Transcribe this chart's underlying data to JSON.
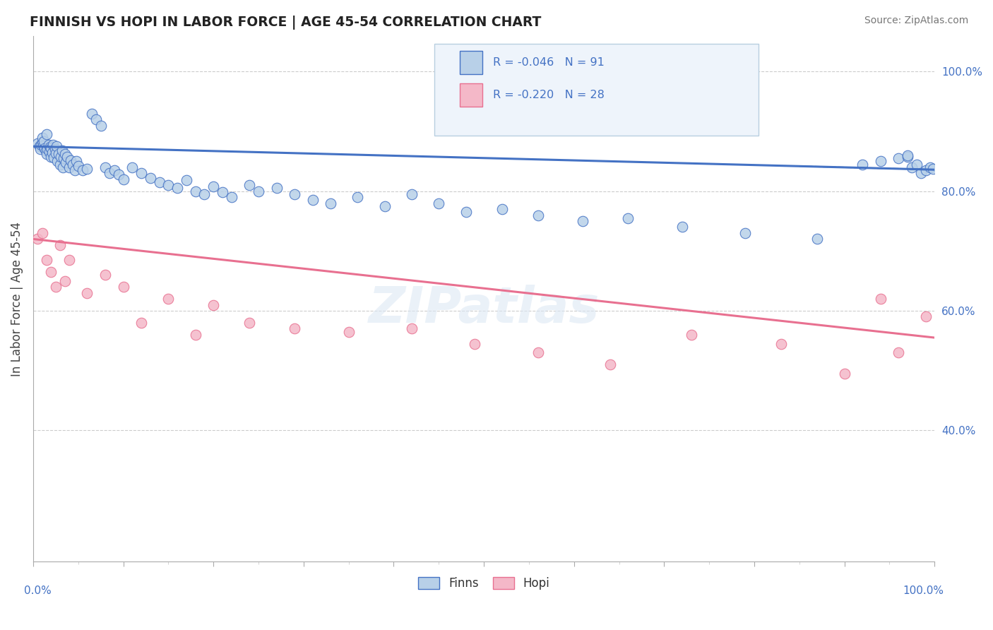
{
  "title": "FINNISH VS HOPI IN LABOR FORCE | AGE 45-54 CORRELATION CHART",
  "source": "Source: ZipAtlas.com",
  "ylabel": "In Labor Force | Age 45-54",
  "xmin": 0.0,
  "xmax": 1.0,
  "ymin": 0.18,
  "ymax": 1.06,
  "right_yticks": [
    0.4,
    0.6,
    0.8,
    1.0
  ],
  "right_yticklabels": [
    "40.0%",
    "60.0%",
    "80.0%",
    "100.0%"
  ],
  "finns_R": -0.046,
  "finns_N": 91,
  "hopi_R": -0.22,
  "hopi_N": 28,
  "finns_color": "#b8d0e8",
  "hopi_color": "#f4b8c8",
  "finns_line_color": "#4472c4",
  "hopi_line_color": "#e87090",
  "finns_line_start_y": 0.875,
  "finns_line_end_y": 0.836,
  "hopi_line_start_y": 0.72,
  "hopi_line_end_y": 0.555,
  "watermark_text": "ZIPatlas",
  "legend_R1": "R = -0.046",
  "legend_N1": "N = 91",
  "legend_R2": "R = -0.220",
  "legend_N2": "N = 28",
  "finns_x": [
    0.005,
    0.007,
    0.008,
    0.009,
    0.01,
    0.01,
    0.011,
    0.012,
    0.013,
    0.014,
    0.015,
    0.015,
    0.016,
    0.017,
    0.018,
    0.019,
    0.02,
    0.02,
    0.021,
    0.022,
    0.023,
    0.024,
    0.025,
    0.026,
    0.027,
    0.028,
    0.03,
    0.031,
    0.032,
    0.033,
    0.034,
    0.035,
    0.036,
    0.038,
    0.04,
    0.042,
    0.044,
    0.046,
    0.048,
    0.05,
    0.055,
    0.06,
    0.065,
    0.07,
    0.075,
    0.08,
    0.085,
    0.09,
    0.095,
    0.1,
    0.11,
    0.12,
    0.13,
    0.14,
    0.15,
    0.16,
    0.17,
    0.18,
    0.19,
    0.2,
    0.21,
    0.22,
    0.24,
    0.25,
    0.27,
    0.29,
    0.31,
    0.33,
    0.36,
    0.39,
    0.42,
    0.45,
    0.48,
    0.52,
    0.56,
    0.61,
    0.66,
    0.72,
    0.79,
    0.87,
    0.92,
    0.94,
    0.96,
    0.97,
    0.97,
    0.975,
    0.98,
    0.985,
    0.99,
    0.995,
    0.998
  ],
  "finns_y": [
    0.88,
    0.875,
    0.87,
    0.878,
    0.882,
    0.89,
    0.876,
    0.884,
    0.872,
    0.868,
    0.895,
    0.862,
    0.87,
    0.878,
    0.866,
    0.874,
    0.858,
    0.872,
    0.865,
    0.878,
    0.856,
    0.87,
    0.864,
    0.875,
    0.85,
    0.862,
    0.845,
    0.858,
    0.868,
    0.84,
    0.855,
    0.862,
    0.848,
    0.858,
    0.84,
    0.852,
    0.845,
    0.835,
    0.85,
    0.842,
    0.835,
    0.838,
    0.93,
    0.92,
    0.91,
    0.84,
    0.83,
    0.835,
    0.828,
    0.82,
    0.84,
    0.83,
    0.822,
    0.815,
    0.81,
    0.805,
    0.818,
    0.8,
    0.795,
    0.808,
    0.798,
    0.79,
    0.81,
    0.8,
    0.805,
    0.795,
    0.785,
    0.78,
    0.79,
    0.775,
    0.795,
    0.78,
    0.765,
    0.77,
    0.76,
    0.75,
    0.755,
    0.74,
    0.73,
    0.72,
    0.845,
    0.85,
    0.855,
    0.858,
    0.86,
    0.84,
    0.845,
    0.83,
    0.835,
    0.84,
    0.838
  ],
  "hopi_x": [
    0.005,
    0.01,
    0.015,
    0.02,
    0.025,
    0.03,
    0.035,
    0.04,
    0.06,
    0.08,
    0.1,
    0.12,
    0.15,
    0.18,
    0.2,
    0.24,
    0.29,
    0.35,
    0.42,
    0.49,
    0.56,
    0.64,
    0.73,
    0.83,
    0.9,
    0.94,
    0.96,
    0.99
  ],
  "hopi_y": [
    0.72,
    0.73,
    0.685,
    0.665,
    0.64,
    0.71,
    0.65,
    0.685,
    0.63,
    0.66,
    0.64,
    0.58,
    0.62,
    0.56,
    0.61,
    0.58,
    0.57,
    0.565,
    0.57,
    0.545,
    0.53,
    0.51,
    0.56,
    0.545,
    0.495,
    0.62,
    0.53,
    0.59
  ]
}
